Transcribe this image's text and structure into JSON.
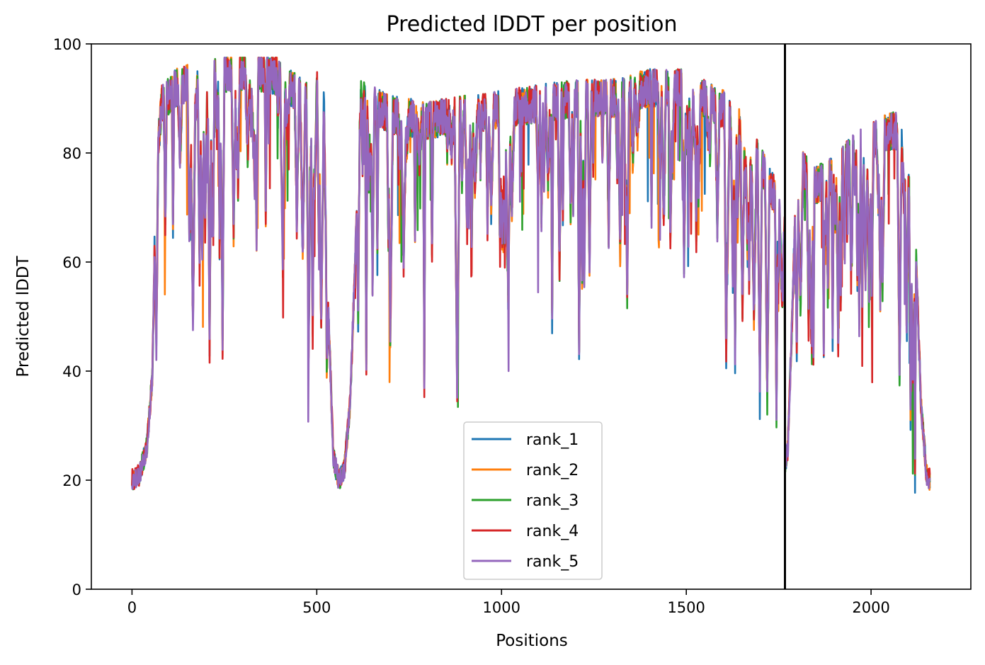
{
  "chart_data": {
    "type": "line",
    "title": "Predicted lDDT per position",
    "xlabel": "Positions",
    "ylabel": "Predicted lDDT",
    "xlim": [
      -110,
      2270
    ],
    "ylim": [
      0,
      100
    ],
    "xticks": [
      0,
      500,
      1000,
      1500,
      2000
    ],
    "yticks": [
      0,
      20,
      40,
      60,
      80,
      100
    ],
    "grid": false,
    "legend_position": "lower-center",
    "chain_break": 1767,
    "sequence_length": 2160,
    "anchors": {
      "x": [
        0,
        20,
        40,
        55,
        65,
        80,
        120,
        200,
        300,
        400,
        480,
        500,
        520,
        530,
        545,
        560,
        575,
        590,
        620,
        700,
        800,
        900,
        1000,
        1100,
        1200,
        1300,
        1400,
        1500,
        1600,
        1650,
        1700,
        1740,
        1766,
        1767,
        1775,
        1800,
        1850,
        1900,
        1950,
        2000,
        2050,
        2080,
        2100,
        2120,
        2135,
        2150,
        2160
      ],
      "y": [
        16,
        17,
        22,
        35,
        72,
        85,
        88,
        90,
        91,
        90,
        85,
        88,
        85,
        50,
        20,
        16,
        18,
        30,
        86,
        83,
        82,
        83,
        84,
        85,
        86,
        86,
        88,
        88,
        84,
        80,
        74,
        68,
        62,
        19,
        22,
        74,
        70,
        72,
        76,
        78,
        80,
        80,
        70,
        60,
        30,
        17,
        16
      ]
    },
    "series": [
      {
        "name": "rank_1",
        "color": "#1f77b4",
        "seed": 11
      },
      {
        "name": "rank_2",
        "color": "#ff7f0e",
        "seed": 23
      },
      {
        "name": "rank_3",
        "color": "#2ca02c",
        "seed": 37
      },
      {
        "name": "rank_4",
        "color": "#d62728",
        "seed": 41
      },
      {
        "name": "rank_5",
        "color": "#9467bd",
        "seed": 53
      }
    ]
  }
}
